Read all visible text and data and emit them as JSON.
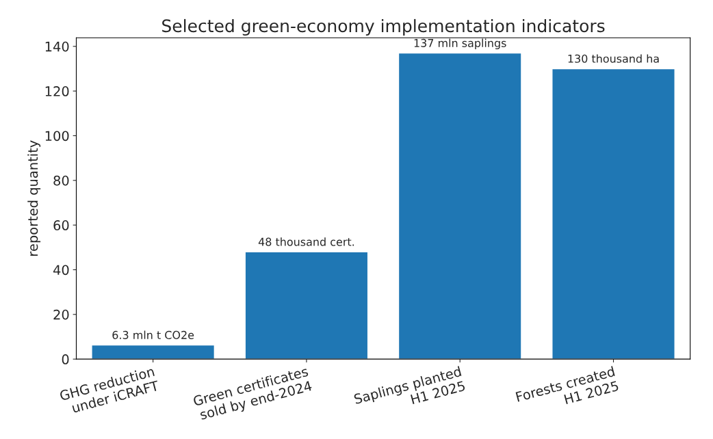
{
  "chart_data": {
    "type": "bar",
    "title": "Selected green-economy implementation indicators",
    "ylabel": "reported quantity",
    "categories": [
      "GHG reduction\nunder iCRAFT",
      "Green certificates\nsold by end-2024",
      "Saplings planted\nH1 2025",
      "Forests created\nH1 2025"
    ],
    "values": [
      6.3,
      48,
      137,
      130
    ],
    "color": "#1f77b4",
    "value_labels": [
      "6.3 mln t CO2e",
      "48 thousand cert.",
      "137 mln saplings",
      "130 thousand ha"
    ],
    "ylim": [
      0,
      143.85
    ],
    "yticks": [
      0,
      20,
      40,
      60,
      80,
      100,
      120,
      140
    ],
    "grid": false
  }
}
